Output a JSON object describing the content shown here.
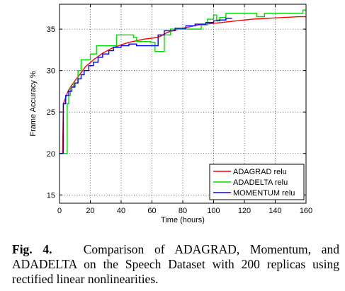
{
  "figure": {
    "caption_label": "Fig. 4.",
    "caption_text": "Comparison of ADAGRAD, Momentum, and ADADELTA on the Speech Dataset with 200 replicas using rectified linear nonlinearities."
  },
  "chart_data": {
    "type": "line",
    "title": "",
    "xlabel": "Time (hours)",
    "ylabel": "Frame Accuracy %",
    "xlim": [
      0,
      160
    ],
    "ylim": [
      14,
      38
    ],
    "xticks": [
      0,
      20,
      40,
      60,
      80,
      100,
      120,
      140,
      160
    ],
    "yticks": [
      15,
      20,
      25,
      30,
      35
    ],
    "grid": true,
    "legend": {
      "location": "lower-right"
    },
    "series": [
      {
        "name": "ADAGRAD relu",
        "color": "#ff0000",
        "step": false,
        "points": [
          [
            2,
            20
          ],
          [
            2.5,
            26
          ],
          [
            3.5,
            26.5
          ],
          [
            4.5,
            27
          ],
          [
            5.5,
            27.5
          ],
          [
            7,
            28
          ],
          [
            9,
            28.5
          ],
          [
            11,
            29
          ],
          [
            13,
            29.5
          ],
          [
            15,
            30
          ],
          [
            17,
            30.5
          ],
          [
            19,
            30.8
          ],
          [
            22,
            31.3
          ],
          [
            25,
            31.7
          ],
          [
            28,
            32.1
          ],
          [
            31,
            32.4
          ],
          [
            34,
            32.7
          ],
          [
            37,
            32.9
          ],
          [
            40,
            33.1
          ],
          [
            45,
            33.4
          ],
          [
            50,
            33.6
          ],
          [
            55,
            33.8
          ],
          [
            60,
            33.9
          ],
          [
            63,
            34.0
          ],
          [
            65,
            34.1
          ],
          [
            70,
            34.6
          ],
          [
            75,
            34.9
          ],
          [
            80,
            35.1
          ],
          [
            85,
            35.3
          ],
          [
            90,
            35.5
          ],
          [
            95,
            35.6
          ],
          [
            100,
            35.7
          ],
          [
            105,
            35.8
          ],
          [
            110,
            35.9
          ],
          [
            115,
            36.0
          ],
          [
            120,
            36.1
          ],
          [
            125,
            36.2
          ],
          [
            130,
            36.25
          ],
          [
            135,
            36.3
          ],
          [
            140,
            36.35
          ],
          [
            145,
            36.4
          ],
          [
            150,
            36.45
          ],
          [
            155,
            36.5
          ],
          [
            160,
            36.5
          ]
        ]
      },
      {
        "name": "ADADELTA relu",
        "color": "#00dd00",
        "step": true,
        "points": [
          [
            0,
            20
          ],
          [
            5,
            20
          ],
          [
            5,
            26
          ],
          [
            6,
            26
          ],
          [
            6,
            27
          ],
          [
            7,
            27
          ],
          [
            7,
            28
          ],
          [
            9,
            28
          ],
          [
            9,
            28.5
          ],
          [
            12,
            28.5
          ],
          [
            12,
            30
          ],
          [
            14,
            30
          ],
          [
            14,
            31.3
          ],
          [
            20,
            31.3
          ],
          [
            20,
            32
          ],
          [
            24,
            32
          ],
          [
            24,
            33
          ],
          [
            37,
            33
          ],
          [
            37,
            34.3
          ],
          [
            48,
            34.3
          ],
          [
            48,
            34
          ],
          [
            50,
            34
          ],
          [
            50,
            33.5
          ],
          [
            59,
            33.5
          ],
          [
            59,
            33.4
          ],
          [
            62,
            33.4
          ],
          [
            62,
            32.3
          ],
          [
            68,
            32.3
          ],
          [
            68,
            34.3
          ],
          [
            72,
            34.3
          ],
          [
            72,
            35
          ],
          [
            92,
            35
          ],
          [
            92,
            35.5
          ],
          [
            96,
            35.5
          ],
          [
            96,
            36.2
          ],
          [
            100,
            36.2
          ],
          [
            100,
            36.7
          ],
          [
            102,
            36.7
          ],
          [
            102,
            36.1
          ],
          [
            104,
            36.1
          ],
          [
            104,
            36.4
          ],
          [
            108,
            36.4
          ],
          [
            108,
            36.9
          ],
          [
            128,
            36.9
          ],
          [
            128,
            36.5
          ],
          [
            133,
            36.5
          ],
          [
            133,
            36.9
          ],
          [
            158,
            36.9
          ],
          [
            158,
            37.3
          ],
          [
            160,
            37.3
          ]
        ]
      },
      {
        "name": "MOMENTUM relu",
        "color": "#0000ff",
        "step": true,
        "points": [
          [
            0,
            20
          ],
          [
            2.5,
            20
          ],
          [
            2.5,
            26
          ],
          [
            4,
            26
          ],
          [
            4,
            27
          ],
          [
            6,
            27
          ],
          [
            6,
            27.5
          ],
          [
            8,
            27.5
          ],
          [
            8,
            28
          ],
          [
            10,
            28
          ],
          [
            10,
            28.5
          ],
          [
            12,
            28.5
          ],
          [
            12,
            29
          ],
          [
            14,
            29
          ],
          [
            14,
            29.5
          ],
          [
            16,
            29.5
          ],
          [
            16,
            30
          ],
          [
            19,
            30
          ],
          [
            19,
            30.6
          ],
          [
            22,
            30.6
          ],
          [
            22,
            31
          ],
          [
            25,
            31
          ],
          [
            25,
            31.6
          ],
          [
            28,
            31.6
          ],
          [
            28,
            32
          ],
          [
            32,
            32
          ],
          [
            32,
            32.4
          ],
          [
            35,
            32.4
          ],
          [
            35,
            32.8
          ],
          [
            40,
            32.8
          ],
          [
            40,
            33
          ],
          [
            45,
            33
          ],
          [
            45,
            33.2
          ],
          [
            50,
            33.2
          ],
          [
            50,
            33
          ],
          [
            64,
            33
          ],
          [
            64,
            34.3
          ],
          [
            68,
            34.3
          ],
          [
            68,
            34.8
          ],
          [
            75,
            34.8
          ],
          [
            75,
            35.1
          ],
          [
            82,
            35.1
          ],
          [
            82,
            35.4
          ],
          [
            88,
            35.4
          ],
          [
            88,
            35.6
          ],
          [
            95,
            35.6
          ],
          [
            95,
            35.8
          ],
          [
            100,
            35.8
          ],
          [
            100,
            36.0
          ],
          [
            104,
            36.0
          ],
          [
            104,
            36.1
          ],
          [
            108,
            36.1
          ],
          [
            108,
            36.3
          ],
          [
            112,
            36.3
          ]
        ]
      }
    ]
  }
}
